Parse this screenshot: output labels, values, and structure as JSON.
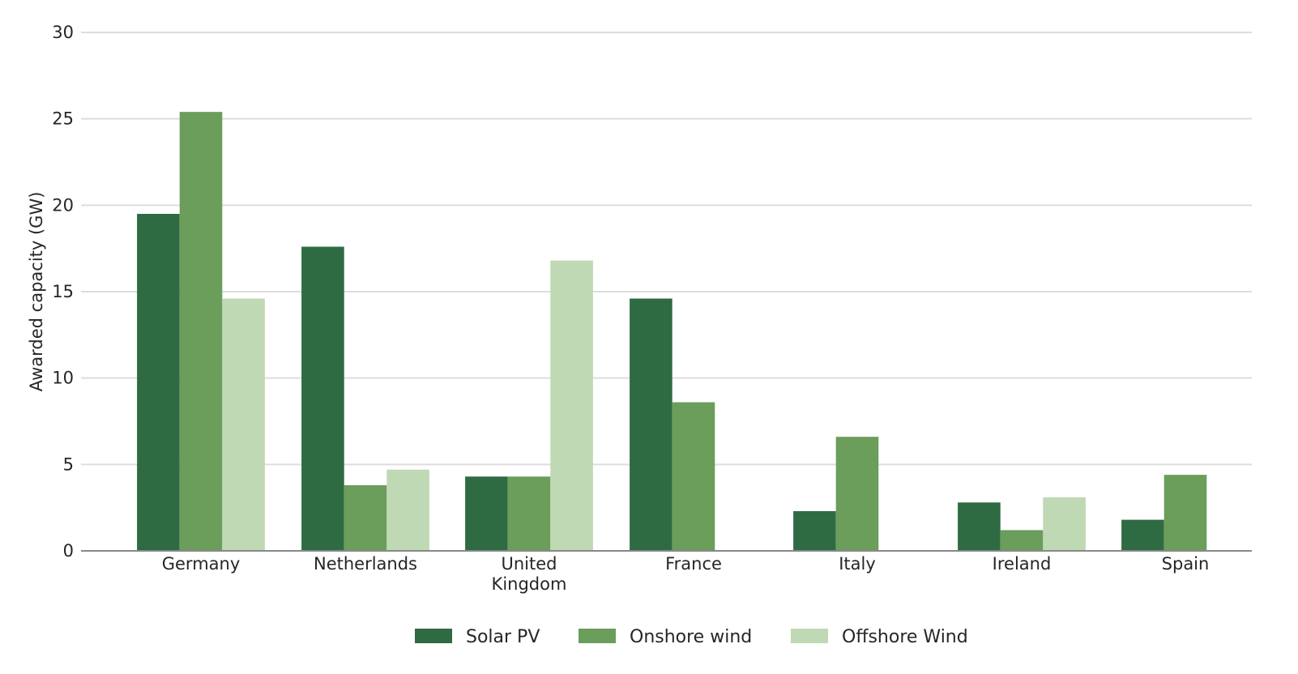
{
  "chart_data": {
    "type": "bar",
    "title": "",
    "xlabel": "",
    "ylabel": "Awarded capacity (GW)",
    "ylim": [
      0,
      30
    ],
    "yticks": [
      0,
      5,
      10,
      15,
      20,
      25,
      30
    ],
    "grid": true,
    "legend_position": "bottom",
    "categories": [
      "Germany",
      "Netherlands",
      "United Kingdom",
      "France",
      "Italy",
      "Ireland",
      "Spain"
    ],
    "category_labels": [
      [
        "Germany"
      ],
      [
        "Netherlands"
      ],
      [
        "United",
        "Kingdom"
      ],
      [
        "France"
      ],
      [
        "Italy"
      ],
      [
        "Ireland"
      ],
      [
        "Spain"
      ]
    ],
    "series": [
      {
        "name": "Solar PV",
        "color": "#2e6b42",
        "values": [
          19.5,
          17.6,
          4.3,
          14.6,
          2.3,
          2.8,
          1.8
        ]
      },
      {
        "name": "Onshore wind",
        "color": "#6b9d5b",
        "values": [
          25.4,
          3.8,
          4.3,
          8.6,
          6.6,
          1.2,
          4.4
        ]
      },
      {
        "name": "Offshore Wind",
        "color": "#bfd9b4",
        "values": [
          14.6,
          4.7,
          16.8,
          0,
          0,
          3.1,
          0
        ]
      }
    ],
    "gridline_color": "#dddddd",
    "axis_color": "#888888"
  }
}
